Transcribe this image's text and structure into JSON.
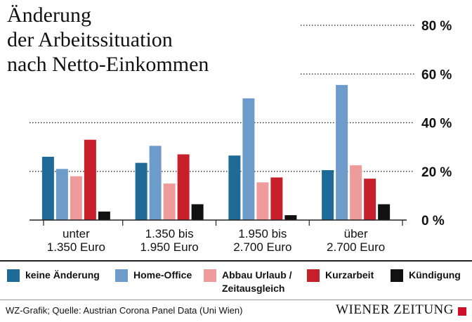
{
  "title_lines": [
    "Änderung",
    "der Arbeitssituation",
    "nach Netto-Einkommen"
  ],
  "chart_data": {
    "type": "bar",
    "categories": [
      [
        "unter",
        "1.350 Euro"
      ],
      [
        "1.350 bis",
        "1.950 Euro"
      ],
      [
        "1.950 bis",
        "2.700 Euro"
      ],
      [
        "über",
        "2.700 Euro"
      ]
    ],
    "y_ticks": [
      {
        "value": 0,
        "label": "0 %"
      },
      {
        "value": 20,
        "label": "20 %"
      },
      {
        "value": 40,
        "label": "40 %"
      },
      {
        "value": 60,
        "label": "60 %"
      },
      {
        "value": 80,
        "label": "80 %"
      }
    ],
    "ylim": [
      0,
      80
    ],
    "series": [
      {
        "name": "keine Änderung",
        "color": "#1f6a96",
        "values": [
          26,
          23.5,
          26.5,
          20.5
        ]
      },
      {
        "name": "Home-Office",
        "color": "#6d9ccb",
        "values": [
          21,
          30.5,
          50,
          55.5
        ]
      },
      {
        "name": "Abbau Urlaub / Zeitausgleich",
        "color": "#ef9b9b",
        "values": [
          18,
          15,
          15.5,
          22.5
        ]
      },
      {
        "name": "Kurzarbeit",
        "color": "#c8202a",
        "values": [
          33,
          27,
          17.5,
          17
        ]
      },
      {
        "name": "Kündigung",
        "color": "#111111",
        "values": [
          3.5,
          6.5,
          2,
          6.5
        ]
      }
    ],
    "grid": true,
    "legend_position": "bottom"
  },
  "legend": [
    {
      "lines": [
        "keine Änderung"
      ],
      "color": "#1f6a96"
    },
    {
      "lines": [
        "Home-Office"
      ],
      "color": "#6d9ccb"
    },
    {
      "lines": [
        "Abbau Urlaub /",
        "Zeitausgleich"
      ],
      "color": "#ef9b9b"
    },
    {
      "lines": [
        "Kurzarbeit"
      ],
      "color": "#c8202a"
    },
    {
      "lines": [
        "Kündigung"
      ],
      "color": "#111111"
    }
  ],
  "source": "WZ-Grafik; Quelle: Austrian Corona Panel Data (Uni Wien)",
  "brand": "WIENER ZEITUNG",
  "brand_color": "#d0102a"
}
